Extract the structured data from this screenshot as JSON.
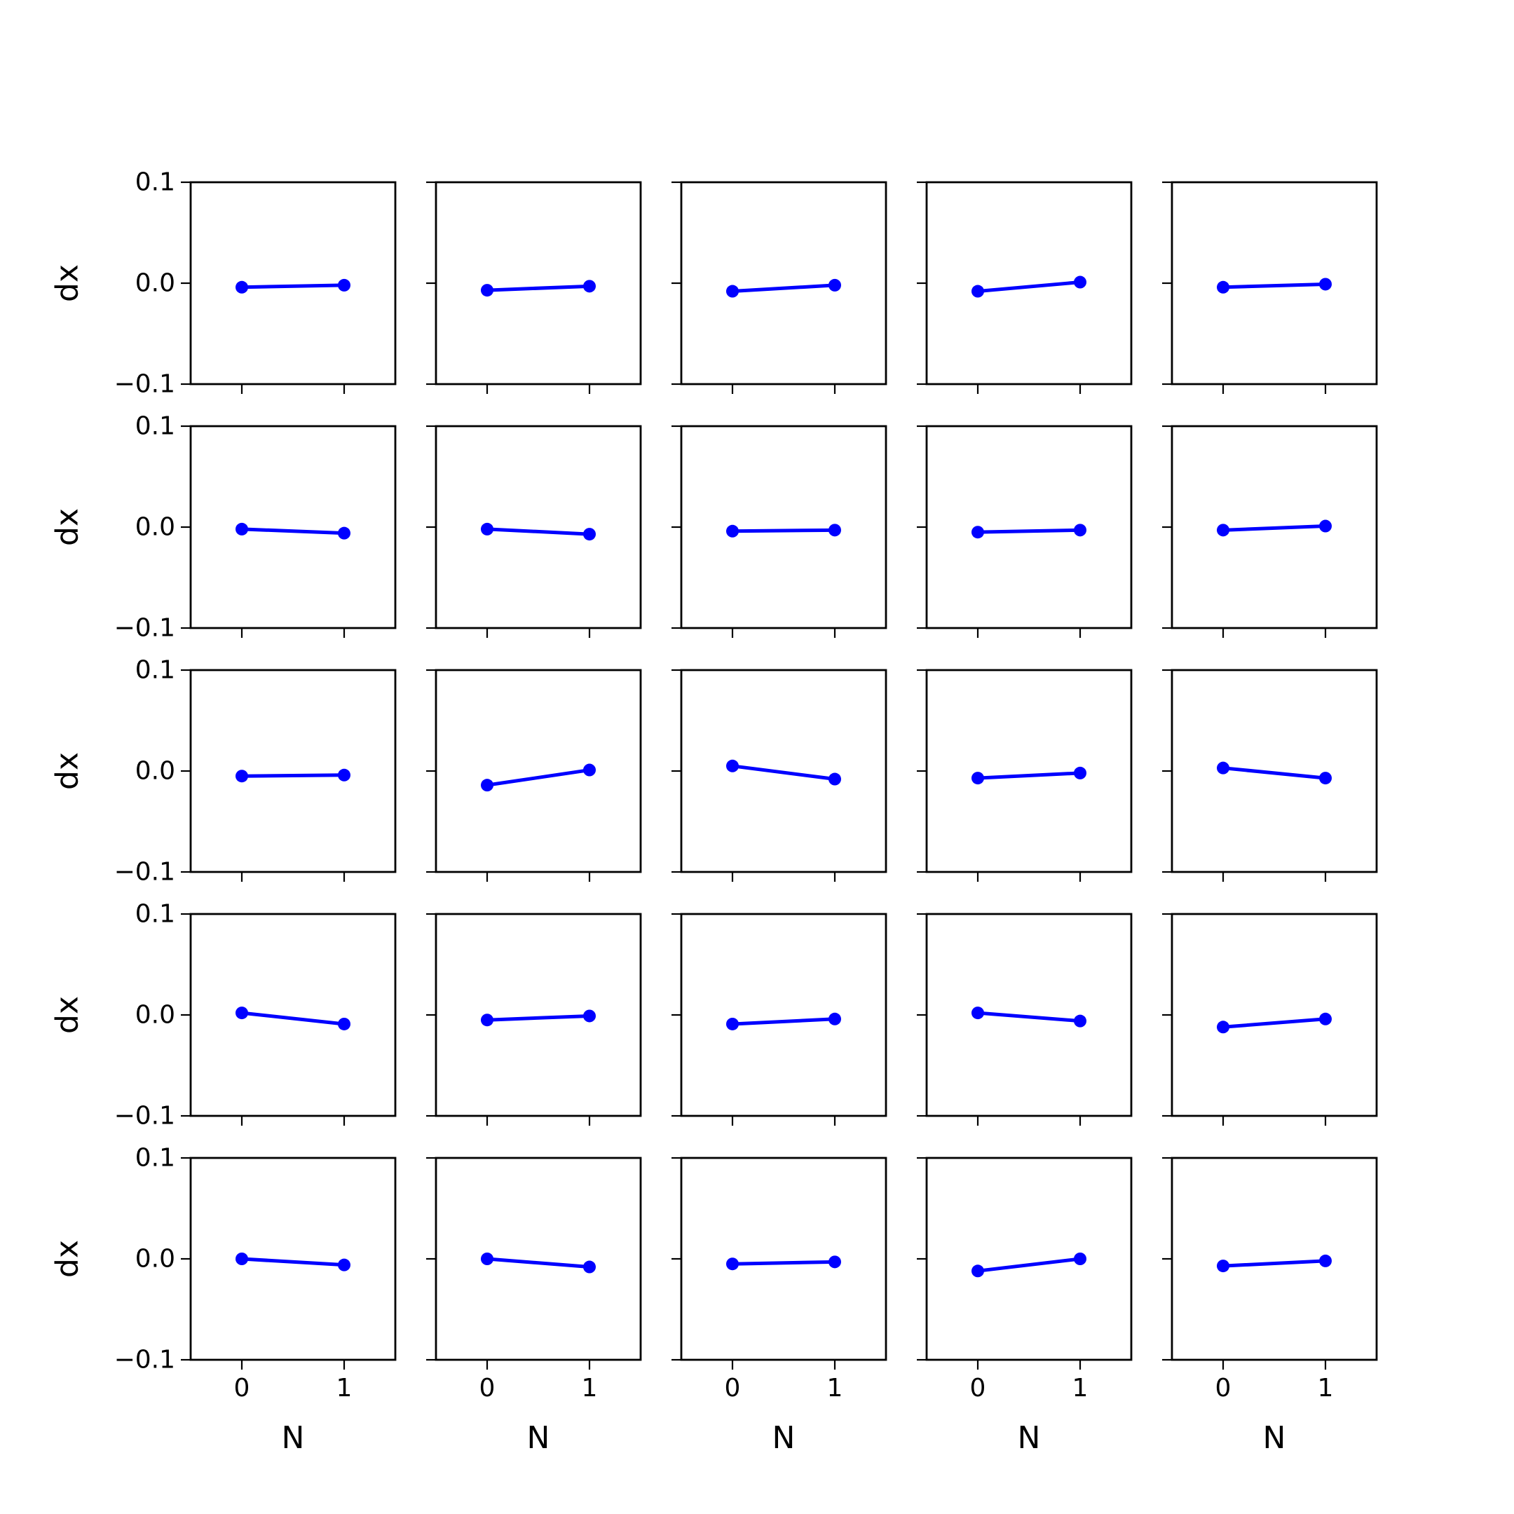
{
  "chart_data": {
    "type": "line",
    "layout": {
      "rows": 5,
      "cols": 5
    },
    "x": [
      0,
      1
    ],
    "xticks": [
      "0",
      "1"
    ],
    "yticks": [
      "0.1",
      "0.0",
      "−0.1"
    ],
    "ytick_values": [
      0.1,
      0.0,
      -0.1
    ],
    "xlim": [
      -0.5,
      1.5
    ],
    "ylim": [
      -0.1,
      0.1
    ],
    "xlabel": "N",
    "ylabel": "dx",
    "grid": false,
    "series_color": "#0000ff",
    "panels": [
      {
        "y": [
          -0.004,
          -0.002
        ]
      },
      {
        "y": [
          -0.007,
          -0.003
        ]
      },
      {
        "y": [
          -0.008,
          -0.002
        ]
      },
      {
        "y": [
          -0.008,
          0.001
        ]
      },
      {
        "y": [
          -0.004,
          -0.001
        ]
      },
      {
        "y": [
          -0.002,
          -0.006
        ]
      },
      {
        "y": [
          -0.002,
          -0.007
        ]
      },
      {
        "y": [
          -0.004,
          -0.003
        ]
      },
      {
        "y": [
          -0.005,
          -0.003
        ]
      },
      {
        "y": [
          -0.003,
          0.001
        ]
      },
      {
        "y": [
          -0.005,
          -0.004
        ]
      },
      {
        "y": [
          -0.014,
          0.001
        ]
      },
      {
        "y": [
          0.005,
          -0.008
        ]
      },
      {
        "y": [
          -0.007,
          -0.002
        ]
      },
      {
        "y": [
          0.003,
          -0.007
        ]
      },
      {
        "y": [
          0.002,
          -0.009
        ]
      },
      {
        "y": [
          -0.005,
          -0.001
        ]
      },
      {
        "y": [
          -0.009,
          -0.004
        ]
      },
      {
        "y": [
          0.002,
          -0.006
        ]
      },
      {
        "y": [
          -0.012,
          -0.004
        ]
      },
      {
        "y": [
          0.0,
          -0.006
        ]
      },
      {
        "y": [
          0.0,
          -0.008
        ]
      },
      {
        "y": [
          -0.005,
          -0.003
        ]
      },
      {
        "y": [
          -0.012,
          0.0
        ]
      },
      {
        "y": [
          -0.007,
          -0.002
        ]
      }
    ]
  }
}
